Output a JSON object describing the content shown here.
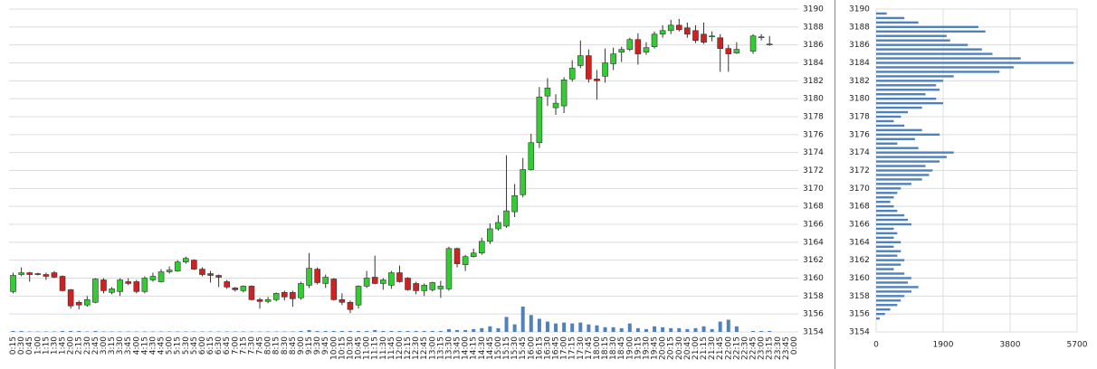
{
  "chart_data": [
    {
      "type": "candlestick",
      "categories": [
        "0:15",
        "0:30",
        "0:45",
        "1:00",
        "1:15",
        "1:30",
        "1:45",
        "2:00",
        "2:15",
        "2:30",
        "2:45",
        "3:00",
        "3:15",
        "3:30",
        "3:45",
        "4:00",
        "4:15",
        "4:30",
        "4:45",
        "5:00",
        "5:15",
        "5:30",
        "5:45",
        "6:00",
        "6:15",
        "6:30",
        "6:45",
        "7:00",
        "7:15",
        "7:30",
        "7:45",
        "8:00",
        "8:15",
        "8:30",
        "8:45",
        "9:00",
        "9:15",
        "9:30",
        "9:45",
        "10:00",
        "10:15",
        "10:30",
        "10:45",
        "11:00",
        "11:15",
        "11:30",
        "11:45",
        "12:00",
        "12:15",
        "12:30",
        "12:45",
        "13:00",
        "13:15",
        "13:30",
        "13:45",
        "14:00",
        "14:15",
        "14:30",
        "14:45",
        "15:00",
        "15:15",
        "15:30",
        "15:45",
        "16:00",
        "16:15",
        "16:30",
        "16:45",
        "17:00",
        "17:15",
        "17:30",
        "17:45",
        "18:00",
        "18:15",
        "18:30",
        "18:45",
        "19:00",
        "19:15",
        "19:30",
        "19:45",
        "20:00",
        "20:15",
        "20:30",
        "20:45",
        "21:00",
        "21:15",
        "21:30",
        "21:45",
        "22:00",
        "22:15",
        "22:30",
        "22:45",
        "23:00",
        "23:15",
        "23:30",
        "23:45",
        "0:00"
      ],
      "open": [
        3158.5,
        3160.4,
        3160.6,
        3160.5,
        3160.4,
        3160.6,
        3160.2,
        3158.7,
        3157.3,
        3157.0,
        3157.3,
        3159.8,
        3158.4,
        3158.5,
        3159.6,
        3159.6,
        3158.5,
        3159.8,
        3159.6,
        3160.7,
        3160.8,
        3161.8,
        3162.0,
        3161.0,
        3160.5,
        3160.3,
        3159.6,
        3158.9,
        3158.6,
        3159.1,
        3157.6,
        3157.4,
        3157.6,
        3158.4,
        3158.4,
        3157.8,
        3159.2,
        3161.0,
        3159.4,
        3159.9,
        3157.6,
        3157.3,
        3157.0,
        3159.1,
        3160.1,
        3159.4,
        3159.2,
        3160.6,
        3160.0,
        3159.4,
        3158.6,
        3158.7,
        3158.8,
        3158.8,
        3163.3,
        3161.5,
        3162.4,
        3162.8,
        3164.1,
        3165.5,
        3165.8,
        3167.4,
        3169.3,
        3172.1,
        3175.1,
        3180.3,
        3179.0,
        3179.2,
        3182.2,
        3183.7,
        3184.8,
        3182.2,
        3182.5,
        3183.9,
        3185.2,
        3185.5,
        3186.6,
        3185.2,
        3185.8,
        3187.2,
        3187.6,
        3188.2,
        3187.9,
        3187.6,
        3187.2,
        3186.9,
        3186.8,
        3185.6,
        3185.1,
        null,
        3185.3,
        3186.8,
        3186.0,
        null,
        null,
        null
      ],
      "high": [
        3160.6,
        3161.2,
        3160.7,
        3160.6,
        3160.6,
        3160.8,
        3160.3,
        3158.8,
        3157.5,
        3158.0,
        3160.0,
        3160.0,
        3159.0,
        3160.0,
        3160.0,
        3159.8,
        3160.2,
        3160.6,
        3161.0,
        3161.3,
        3162.0,
        3162.4,
        3162.1,
        3161.2,
        3160.8,
        3160.4,
        3159.8,
        3159.0,
        3159.2,
        3159.2,
        3157.8,
        3157.9,
        3158.4,
        3158.6,
        3158.6,
        3159.6,
        3162.8,
        3161.2,
        3160.4,
        3160.0,
        3158.3,
        3157.5,
        3159.2,
        3160.8,
        3162.5,
        3160.0,
        3160.8,
        3161.4,
        3160.1,
        3159.6,
        3159.4,
        3159.6,
        3159.7,
        3163.5,
        3163.4,
        3162.6,
        3163.3,
        3164.5,
        3166.1,
        3167.0,
        3173.7,
        3170.5,
        3173.4,
        3176.1,
        3181.3,
        3182.3,
        3180.5,
        3182.4,
        3184.3,
        3186.5,
        3185.5,
        3183.2,
        3185.6,
        3185.7,
        3185.8,
        3186.8,
        3187.3,
        3186.3,
        3187.5,
        3188.2,
        3188.8,
        3188.9,
        3188.5,
        3188.2,
        3188.5,
        3187.5,
        3187.2,
        3186.0,
        3186.3,
        null,
        3187.2,
        3187.2,
        3187.0,
        null,
        null,
        null
      ],
      "low": [
        3158.3,
        3160.2,
        3159.6,
        3160.3,
        3159.8,
        3160.0,
        3158.5,
        3156.6,
        3156.5,
        3156.8,
        3157.2,
        3158.3,
        3158.2,
        3158.0,
        3159.2,
        3158.3,
        3158.3,
        3159.6,
        3159.5,
        3160.5,
        3160.7,
        3161.6,
        3160.9,
        3160.2,
        3159.5,
        3159.0,
        3158.8,
        3158.5,
        3158.4,
        3157.5,
        3156.6,
        3157.2,
        3157.4,
        3157.5,
        3156.8,
        3157.6,
        3158.9,
        3159.3,
        3158.9,
        3157.5,
        3157.0,
        3156.1,
        3156.6,
        3158.9,
        3159.3,
        3158.7,
        3158.8,
        3159.5,
        3158.6,
        3158.2,
        3158.0,
        3158.5,
        3157.8,
        3158.6,
        3161.2,
        3160.8,
        3162.3,
        3162.6,
        3163.8,
        3165.3,
        3165.6,
        3166.8,
        3169.0,
        3172.0,
        3174.5,
        3179.2,
        3178.2,
        3178.4,
        3181.9,
        3183.4,
        3181.8,
        3179.9,
        3181.8,
        3183.2,
        3184.1,
        3185.3,
        3183.8,
        3184.9,
        3185.6,
        3186.8,
        3187.2,
        3187.5,
        3186.8,
        3186.2,
        3186.1,
        3186.4,
        3183.0,
        3183.0,
        3185.0,
        null,
        3185.0,
        3186.5,
        3185.9,
        null,
        null,
        null
      ],
      "close": [
        3160.3,
        3160.6,
        3160.4,
        3160.4,
        3160.2,
        3160.1,
        3158.6,
        3156.9,
        3157.0,
        3157.6,
        3159.9,
        3158.6,
        3158.8,
        3159.8,
        3159.4,
        3158.5,
        3160.0,
        3160.2,
        3160.7,
        3160.9,
        3161.8,
        3162.2,
        3161.0,
        3160.4,
        3160.3,
        3160.1,
        3159.0,
        3158.7,
        3159.1,
        3157.6,
        3157.4,
        3157.6,
        3158.3,
        3157.9,
        3157.7,
        3159.4,
        3161.1,
        3159.5,
        3160.1,
        3157.6,
        3157.3,
        3156.5,
        3159.1,
        3160.0,
        3159.4,
        3159.8,
        3160.6,
        3159.6,
        3158.7,
        3158.6,
        3159.2,
        3159.5,
        3159.1,
        3163.3,
        3161.6,
        3162.4,
        3162.8,
        3164.1,
        3165.5,
        3166.2,
        3167.5,
        3169.2,
        3172.1,
        3175.1,
        3180.2,
        3181.2,
        3179.5,
        3182.1,
        3183.4,
        3184.8,
        3182.2,
        3182.0,
        3184.0,
        3185.0,
        3185.5,
        3186.6,
        3185.0,
        3185.7,
        3187.2,
        3187.6,
        3188.2,
        3187.7,
        3187.2,
        3186.5,
        3186.3,
        3187.0,
        3185.6,
        3185.0,
        3185.5,
        null,
        3187.0,
        3186.9,
        3186.1,
        null,
        null,
        null
      ],
      "volume": [
        1,
        1,
        0.5,
        0.5,
        0.5,
        0.5,
        1,
        1,
        1,
        0.5,
        1,
        0.5,
        0.5,
        0.5,
        0.5,
        0.5,
        0.5,
        0.5,
        0.5,
        0.5,
        0.5,
        0.5,
        0.5,
        0.5,
        0.5,
        0.5,
        0.5,
        0.5,
        0.5,
        0.5,
        0.5,
        0.5,
        0.5,
        0.5,
        0.5,
        1,
        2,
        1,
        1,
        1,
        1,
        1,
        1,
        1,
        2,
        1,
        1,
        1,
        1,
        1,
        1,
        1,
        1,
        3,
        2,
        2,
        3,
        4,
        6,
        4,
        16,
        8,
        27,
        18,
        14,
        11,
        9,
        10,
        9,
        10,
        8,
        7,
        5,
        5,
        4,
        9,
        4,
        3,
        6,
        5,
        4,
        4,
        3,
        4,
        6,
        3,
        11,
        13,
        6,
        null,
        1,
        1,
        1,
        null,
        null,
        null
      ],
      "ylim": [
        3154,
        3190
      ],
      "yticks": [
        3154,
        3156,
        3158,
        3160,
        3162,
        3164,
        3166,
        3168,
        3170,
        3172,
        3174,
        3176,
        3178,
        3180,
        3182,
        3184,
        3186,
        3188,
        3190
      ],
      "grid": true,
      "up_color": "#33cc33",
      "down_color": "#cc2222",
      "volume_color": "#4f81bd"
    },
    {
      "type": "hbar",
      "y": [
        3189.5,
        3189,
        3188.5,
        3188,
        3187.5,
        3187,
        3186.5,
        3186,
        3185.5,
        3185,
        3184.5,
        3184,
        3183.5,
        3183,
        3182.5,
        3182,
        3181.5,
        3181,
        3180.5,
        3180,
        3179.5,
        3179,
        3178.5,
        3178,
        3177.5,
        3177,
        3176.5,
        3176,
        3175.5,
        3175,
        3174.5,
        3174,
        3173.5,
        3173,
        3172.5,
        3172,
        3171.5,
        3171,
        3170.5,
        3170,
        3169.5,
        3169,
        3168.5,
        3168,
        3167.5,
        3167,
        3166.5,
        3166,
        3165.5,
        3165,
        3164.5,
        3164,
        3163.5,
        3163,
        3162.5,
        3162,
        3161.5,
        3161,
        3160.5,
        3160,
        3159.5,
        3159,
        3158.5,
        3158,
        3157.5,
        3157,
        3156.5,
        3156,
        3155.5
      ],
      "values": [
        300,
        800,
        1200,
        2900,
        3100,
        2000,
        2100,
        2600,
        3000,
        3300,
        4100,
        5600,
        3900,
        3500,
        2200,
        1900,
        1700,
        1800,
        1400,
        1700,
        1900,
        1300,
        900,
        700,
        500,
        800,
        1300,
        1800,
        1100,
        600,
        1200,
        2200,
        2000,
        1800,
        1400,
        1600,
        1500,
        1300,
        1000,
        700,
        600,
        500,
        400,
        500,
        600,
        800,
        900,
        1000,
        500,
        600,
        500,
        700,
        500,
        700,
        600,
        800,
        700,
        500,
        800,
        1000,
        900,
        1200,
        1000,
        800,
        700,
        600,
        400,
        250,
        100
      ],
      "xlim": [
        0,
        5700
      ],
      "xticks": [
        0,
        1900,
        3800,
        5700
      ],
      "ylim": [
        3154,
        3190
      ],
      "yticks": [
        3154,
        3156,
        3158,
        3160,
        3162,
        3164,
        3166,
        3168,
        3170,
        3172,
        3174,
        3176,
        3178,
        3180,
        3182,
        3184,
        3186,
        3188,
        3190
      ],
      "grid": true,
      "color": "#4f81bd"
    }
  ]
}
